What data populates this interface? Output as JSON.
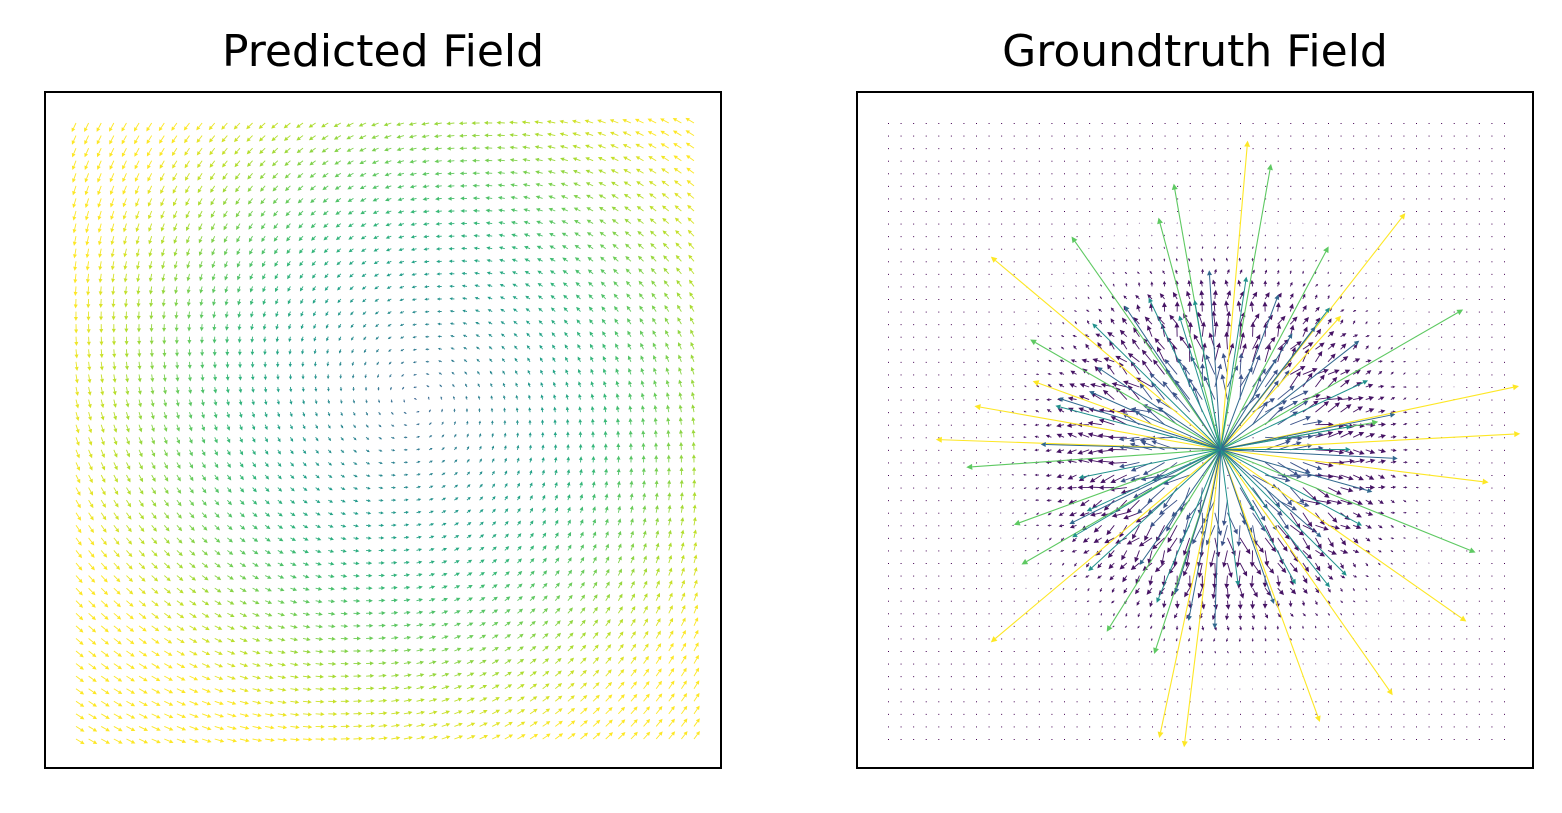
{
  "chart_data": [
    {
      "type": "quiver",
      "title": "Predicted Field",
      "xlabel": "",
      "ylabel": "",
      "xticks": [],
      "yticks": [],
      "grid": false,
      "colormap": "viridis",
      "field": {
        "kind": "vortex",
        "grid_points": 50,
        "center": [
          0.55,
          0.45
        ],
        "domain": [
          [
            -1,
            1
          ],
          [
            -1,
            1
          ]
        ],
        "description_values": "arrow magnitude increases with distance from center; swirl counter-clockwise with slight inward pull"
      },
      "colors": {
        "low": "#440154",
        "mid": "#21918c",
        "high": "#fde725"
      }
    },
    {
      "type": "quiver",
      "title": "Groundtruth Field",
      "xlabel": "",
      "ylabel": "",
      "xticks": [],
      "yticks": [],
      "grid": false,
      "colormap": "viridis",
      "field": {
        "kind": "radial-source",
        "grid_points": 50,
        "center": [
          0.54,
          0.53
        ],
        "domain": [
          [
            -1,
            1
          ],
          [
            -1,
            1
          ]
        ],
        "description_values": "radially outward arrows, large near center ring, tiny dots far away"
      },
      "colors": {
        "low": "#440154",
        "mid": "#21918c",
        "high": "#fde725"
      }
    }
  ]
}
